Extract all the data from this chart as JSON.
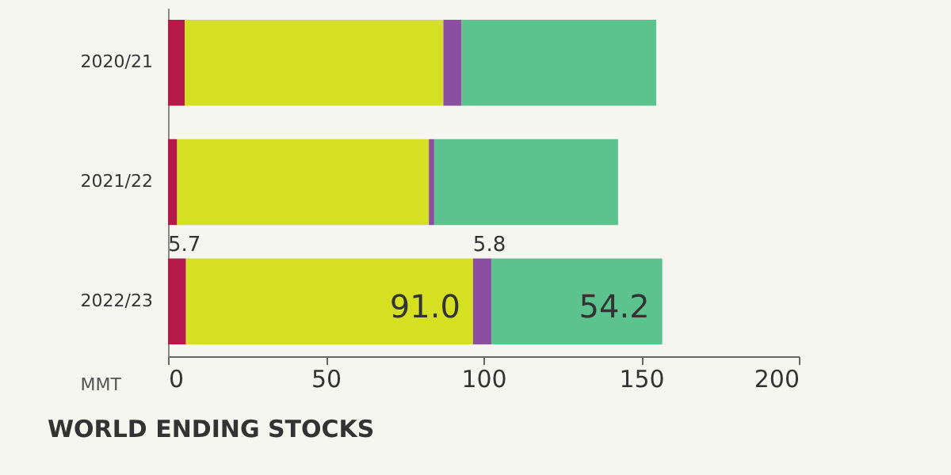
{
  "chart_data": {
    "type": "bar",
    "orientation": "horizontal",
    "stacked": true,
    "xlabel": "MMT",
    "categories": [
      "2020/21",
      "2021/22",
      "2022/23"
    ],
    "series": [
      {
        "color": "#b5194a",
        "values": [
          5.3,
          2.9,
          5.7
        ],
        "value_labels": [
          null,
          null,
          "5.7"
        ]
      },
      {
        "color": "#d6e023",
        "values": [
          82.0,
          79.8,
          91.0
        ],
        "value_labels": [
          null,
          null,
          "91.0"
        ]
      },
      {
        "color": "#8a4fa0",
        "values": [
          5.8,
          1.7,
          5.8
        ],
        "value_labels": [
          null,
          null,
          "5.8"
        ]
      },
      {
        "color": "#5cc38f",
        "values": [
          61.7,
          58.3,
          54.2
        ],
        "value_labels": [
          null,
          null,
          "54.2"
        ]
      }
    ],
    "xlim": [
      0,
      200
    ],
    "xticks": [
      0,
      50,
      100,
      150,
      200
    ],
    "grid": false,
    "legend": false,
    "annotations": [
      "WORLD ENDING STOCKS"
    ]
  }
}
